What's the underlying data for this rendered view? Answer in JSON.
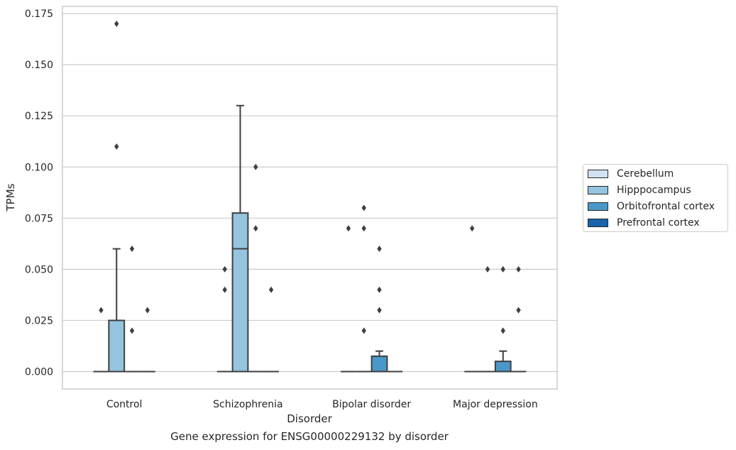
{
  "chart_data": {
    "type": "box",
    "title": "Gene expression for ENSG00000229132 by disorder",
    "xlabel": "Disorder",
    "ylabel": "TPMs",
    "categories": [
      "Control",
      "Schizophrenia",
      "Bipolar disorder",
      "Major depression"
    ],
    "ylim": [
      -0.0085,
      0.1785
    ],
    "yticks": [
      0.0,
      0.025,
      0.05,
      0.075,
      0.1,
      0.125,
      0.15,
      0.175
    ],
    "ytick_labels": [
      "0.000",
      "0.025",
      "0.050",
      "0.075",
      "0.100",
      "0.125",
      "0.150",
      "0.175"
    ],
    "grid": "horizontal",
    "legend_position": "right",
    "series": [
      {
        "name": "Cerebellum",
        "color": "#d0e1f2",
        "boxes": [
          {
            "category": "Control",
            "q1": 0,
            "median": 0,
            "q3": 0,
            "whisker_low": 0,
            "whisker_high": 0,
            "outliers": [
              0.03
            ]
          },
          {
            "category": "Schizophrenia",
            "q1": 0,
            "median": 0,
            "q3": 0,
            "whisker_low": 0,
            "whisker_high": 0,
            "outliers": [
              0.05,
              0.04
            ]
          },
          {
            "category": "Bipolar disorder",
            "q1": 0,
            "median": 0,
            "q3": 0,
            "whisker_low": 0,
            "whisker_high": 0,
            "outliers": [
              0.07
            ]
          },
          {
            "category": "Major depression",
            "q1": 0,
            "median": 0,
            "q3": 0,
            "whisker_low": 0,
            "whisker_high": 0,
            "outliers": [
              0.07
            ]
          }
        ]
      },
      {
        "name": "Hipppocampus",
        "color": "#94c4df",
        "boxes": [
          {
            "category": "Control",
            "q1": 0,
            "median": 0,
            "q3": 0.025,
            "whisker_low": 0,
            "whisker_high": 0.06,
            "outliers": [
              0.17,
              0.11
            ]
          },
          {
            "category": "Schizophrenia",
            "q1": 0,
            "median": 0.06,
            "q3": 0.0775,
            "whisker_low": 0,
            "whisker_high": 0.13,
            "outliers": []
          },
          {
            "category": "Bipolar disorder",
            "q1": 0,
            "median": 0,
            "q3": 0,
            "whisker_low": 0,
            "whisker_high": 0,
            "outliers": [
              0.07,
              0.08,
              0.02
            ]
          },
          {
            "category": "Major depression",
            "q1": 0,
            "median": 0,
            "q3": 0,
            "whisker_low": 0,
            "whisker_high": 0,
            "outliers": [
              0.05
            ]
          }
        ]
      },
      {
        "name": "Orbitofrontal cortex",
        "color": "#4a98c9",
        "boxes": [
          {
            "category": "Control",
            "q1": 0,
            "median": 0,
            "q3": 0,
            "whisker_low": 0,
            "whisker_high": 0,
            "outliers": [
              0.06,
              0.02
            ]
          },
          {
            "category": "Schizophrenia",
            "q1": 0,
            "median": 0,
            "q3": 0,
            "whisker_low": 0,
            "whisker_high": 0,
            "outliers": [
              0.1,
              0.07
            ]
          },
          {
            "category": "Bipolar disorder",
            "q1": 0,
            "median": 0,
            "q3": 0.0075,
            "whisker_low": 0,
            "whisker_high": 0.01,
            "outliers": [
              0.06,
              0.04,
              0.03
            ]
          },
          {
            "category": "Major depression",
            "q1": 0,
            "median": 0,
            "q3": 0.005,
            "whisker_low": 0,
            "whisker_high": 0.01,
            "outliers": [
              0.05,
              0.02
            ]
          }
        ]
      },
      {
        "name": "Prefrontal cortex",
        "color": "#1764ab",
        "boxes": [
          {
            "category": "Control",
            "q1": 0,
            "median": 0,
            "q3": 0,
            "whisker_low": 0,
            "whisker_high": 0,
            "outliers": [
              0.03
            ]
          },
          {
            "category": "Schizophrenia",
            "q1": 0,
            "median": 0,
            "q3": 0,
            "whisker_low": 0,
            "whisker_high": 0,
            "outliers": [
              0.04
            ]
          },
          {
            "category": "Bipolar disorder",
            "q1": 0,
            "median": 0,
            "q3": 0,
            "whisker_low": 0,
            "whisker_high": 0,
            "outliers": []
          },
          {
            "category": "Major depression",
            "q1": 0,
            "median": 0,
            "q3": 0,
            "whisker_low": 0,
            "whisker_high": 0,
            "outliers": [
              0.05,
              0.03
            ]
          }
        ]
      }
    ]
  }
}
